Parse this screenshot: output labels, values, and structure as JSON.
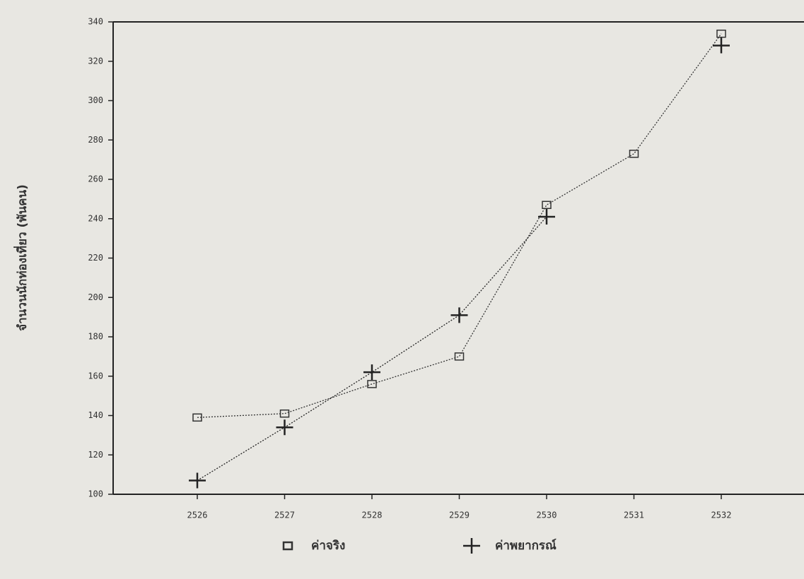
{
  "chart_data": {
    "type": "line",
    "y_label": "จำนวนนักท่องเที่ยว (พันคน)",
    "categories": [
      "2526",
      "2527",
      "2528",
      "2529",
      "2530",
      "2531",
      "2532"
    ],
    "series": [
      {
        "name": "ค่าจริง",
        "color": "#333333",
        "marker": "square",
        "values": [
          139,
          141,
          156,
          170,
          247,
          273,
          334
        ]
      },
      {
        "name": "ค่าพยากรณ์",
        "color": "#222222",
        "marker": "plus",
        "values": [
          107,
          134,
          162,
          191,
          241,
          null,
          328
        ]
      }
    ],
    "ylim": [
      100,
      340
    ],
    "yticks": [
      100,
      120,
      140,
      160,
      180,
      200,
      220,
      240,
      260,
      280,
      300,
      320,
      340
    ],
    "grid": false,
    "legend": "bottom"
  }
}
